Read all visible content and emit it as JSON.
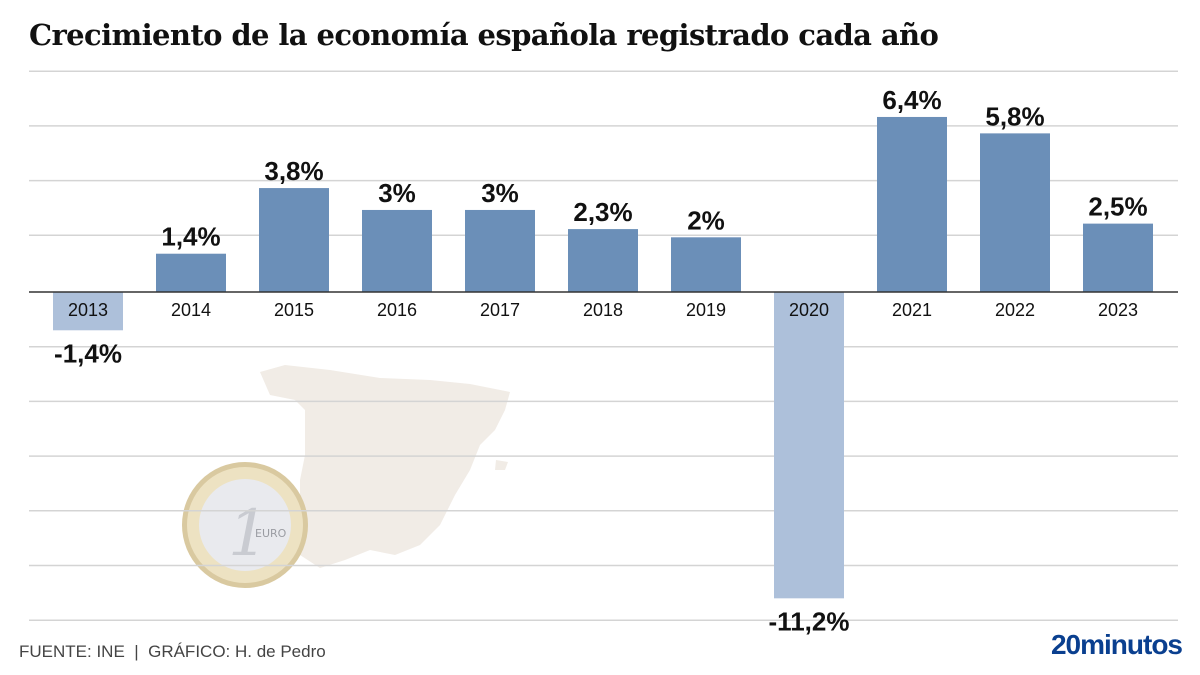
{
  "chart_data": {
    "type": "bar",
    "title": "Crecimiento de la economía española registrado cada año",
    "xlabel": "",
    "ylabel": "",
    "categories": [
      "2013",
      "2014",
      "2015",
      "2016",
      "2017",
      "2018",
      "2019",
      "2020",
      "2021",
      "2022",
      "2023"
    ],
    "values": [
      -1.4,
      1.4,
      3.8,
      3.0,
      3.0,
      2.3,
      2.0,
      -11.2,
      6.4,
      5.8,
      2.5
    ],
    "data_labels": [
      "-1,4%",
      "1,4%",
      "3,8%",
      "3%",
      "3%",
      "2,3%",
      "2%",
      "-11,2%",
      "6,4%",
      "5,8%",
      "2,5%"
    ],
    "ylim": [
      -12,
      8
    ],
    "grid": true,
    "grid_step": 2,
    "legend": "none",
    "colors": {
      "positive": "#6b8fb8",
      "negative": "#adc0da",
      "grid": "#d4d4d4",
      "axis": "#333333"
    }
  },
  "footer": {
    "source": "FUENTE: INE  |  GRÁFICO: H. de Pedro",
    "brand": "20minutos"
  },
  "decorations": {
    "background_map": "spain-map-silhouette",
    "coin": "one-euro-coin"
  }
}
